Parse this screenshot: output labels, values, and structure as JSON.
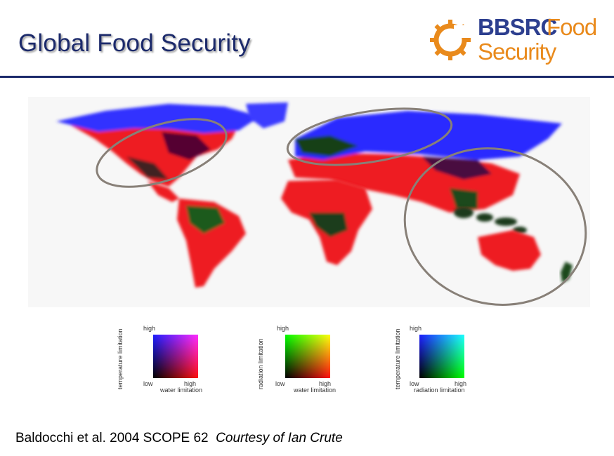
{
  "header": {
    "title": "Global Food Security"
  },
  "logo": {
    "word1": "BBSRC",
    "word2": "Food",
    "word3": "Security",
    "icon": "gear-sun-icon",
    "colors": {
      "blue": "#2d3f8f",
      "orange": "#e98a1c"
    }
  },
  "map": {
    "highlighted_regions": [
      "north-america",
      "europe-asia",
      "asia-pacific"
    ]
  },
  "legends": [
    {
      "y_label": "temperature limitation",
      "y_high": "high",
      "low": "low",
      "x_high": "high",
      "x_label": "water limitation",
      "colors": {
        "top_left": "#1a1aff",
        "top_right": "#d040d0",
        "bottom_left": "#000000",
        "bottom_right": "#ff1010"
      }
    },
    {
      "y_label": "radiation limitation",
      "y_high": "high",
      "low": "low",
      "x_high": "high",
      "x_label": "water limitation",
      "colors": {
        "top_left": "#00ff00",
        "top_right": "#e0e000",
        "bottom_left": "#000000",
        "bottom_right": "#ff1010"
      }
    },
    {
      "y_label": "temperature limitation",
      "y_high": "high",
      "low": "low",
      "x_high": "high",
      "x_label": "radiation limitation",
      "colors": {
        "top_left": "#1a1aff",
        "top_right": "#30e0e0",
        "bottom_left": "#000000",
        "bottom_right": "#00ff00"
      }
    }
  ],
  "credit": {
    "citation": "Baldocchi et al. 2004 SCOPE 62",
    "courtesy": "Courtesy of Ian Crute"
  }
}
